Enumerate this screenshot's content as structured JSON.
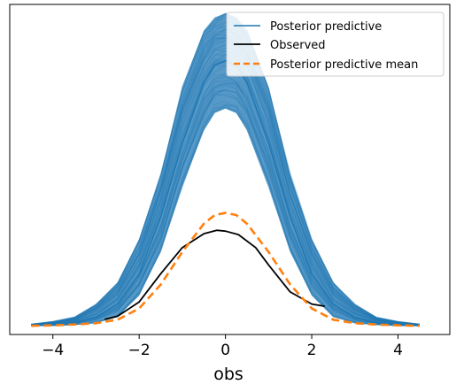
{
  "chart_data": {
    "type": "line",
    "title": "",
    "xlabel": "obs",
    "ylabel": "",
    "xlim": [
      -5.0,
      5.2
    ],
    "ylim": [
      -0.02,
      0.74
    ],
    "xticks": [
      -4,
      -2,
      0,
      2,
      4
    ],
    "xtick_labels": [
      "−4",
      "−2",
      "0",
      "2",
      "4"
    ],
    "yticks_shown": false,
    "grid": false,
    "legend_position": "top-right",
    "colors": {
      "posterior_predictive": "#1f77b4",
      "observed": "#000000",
      "posterior_predictive_mean": "#ff7f0e"
    },
    "series": [
      {
        "name": "Posterior predictive",
        "kind": "ensemble",
        "x": [
          -4.5,
          -4.0,
          -3.5,
          -3.0,
          -2.5,
          -2.0,
          -1.5,
          -1.0,
          -0.5,
          -0.25,
          0.0,
          0.25,
          0.5,
          1.0,
          1.5,
          2.0,
          2.5,
          3.0,
          3.5,
          4.0,
          4.5
        ],
        "values": [
          0.0,
          0.004,
          0.008,
          0.02,
          0.05,
          0.12,
          0.25,
          0.42,
          0.56,
          0.6,
          0.61,
          0.6,
          0.56,
          0.42,
          0.25,
          0.12,
          0.05,
          0.02,
          0.008,
          0.004,
          0.0
        ],
        "band_low": [
          0.0,
          0.0,
          0.002,
          0.006,
          0.02,
          0.07,
          0.17,
          0.32,
          0.45,
          0.49,
          0.5,
          0.49,
          0.45,
          0.32,
          0.17,
          0.07,
          0.02,
          0.006,
          0.002,
          0.0,
          0.0
        ],
        "band_high": [
          0.004,
          0.01,
          0.02,
          0.05,
          0.1,
          0.2,
          0.35,
          0.55,
          0.68,
          0.71,
          0.72,
          0.71,
          0.68,
          0.55,
          0.35,
          0.2,
          0.1,
          0.05,
          0.02,
          0.01,
          0.004
        ]
      },
      {
        "name": "Observed",
        "x": [
          -2.8,
          -2.5,
          -2.0,
          -1.5,
          -1.0,
          -0.5,
          -0.2,
          0.0,
          0.3,
          0.7,
          1.0,
          1.5,
          2.0,
          2.3
        ],
        "values": [
          0.015,
          0.022,
          0.055,
          0.12,
          0.18,
          0.212,
          0.22,
          0.218,
          0.21,
          0.18,
          0.14,
          0.078,
          0.05,
          0.045
        ]
      },
      {
        "name": "Posterior predictive mean",
        "x": [
          -4.5,
          -4.0,
          -3.5,
          -3.0,
          -2.5,
          -2.0,
          -1.5,
          -1.0,
          -0.5,
          -0.25,
          0.0,
          0.25,
          0.5,
          1.0,
          1.5,
          2.0,
          2.5,
          3.0,
          3.5,
          4.0,
          4.5
        ],
        "values": [
          0.0,
          0.001,
          0.003,
          0.006,
          0.014,
          0.04,
          0.095,
          0.17,
          0.235,
          0.255,
          0.26,
          0.255,
          0.235,
          0.17,
          0.095,
          0.04,
          0.014,
          0.006,
          0.003,
          0.001,
          0.0
        ]
      }
    ]
  }
}
